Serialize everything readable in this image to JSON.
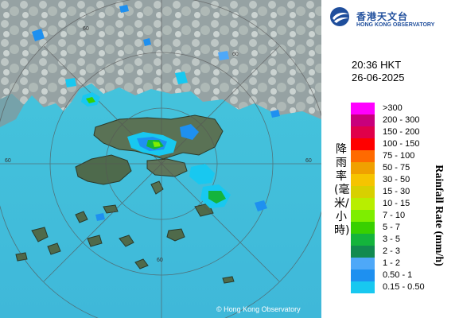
{
  "logo": {
    "name_zh": "香港天文台",
    "name_en": "HONG KONG OBSERVATORY"
  },
  "timestamp": {
    "time": "20:36 HKT",
    "date": "26-06-2025"
  },
  "copyright": "© Hong Kong Observatory",
  "range_labels": [
    "60",
    "60",
    "60",
    "60",
    "60"
  ],
  "legend": {
    "title_zh": "降雨率(毫米/小時)",
    "title_en": "Rainfall Rate (mm/h)",
    "items": [
      {
        "label": ">300",
        "color": "#ff00ff"
      },
      {
        "label": "200 - 300",
        "color": "#c8007c"
      },
      {
        "label": "150 - 200",
        "color": "#e0004a"
      },
      {
        "label": "100 - 150",
        "color": "#ff0000"
      },
      {
        "label": "75 - 100",
        "color": "#ff6a00"
      },
      {
        "label": "50 - 75",
        "color": "#f0a000"
      },
      {
        "label": "30 - 50",
        "color": "#f6c400"
      },
      {
        "label": "15 - 30",
        "color": "#d8d000"
      },
      {
        "label": "10 - 15",
        "color": "#b8ee00"
      },
      {
        "label": "7 - 10",
        "color": "#7eee00"
      },
      {
        "label": "5 - 7",
        "color": "#38d000"
      },
      {
        "label": "3 - 5",
        "color": "#14b43c"
      },
      {
        "label": "2 - 3",
        "color": "#128a50"
      },
      {
        "label": "1 - 2",
        "color": "#4ea8f8"
      },
      {
        "label": "0.50 - 1",
        "color": "#1e90f0"
      },
      {
        "label": "0.15 - 0.50",
        "color": "#18c8f0"
      }
    ]
  }
}
